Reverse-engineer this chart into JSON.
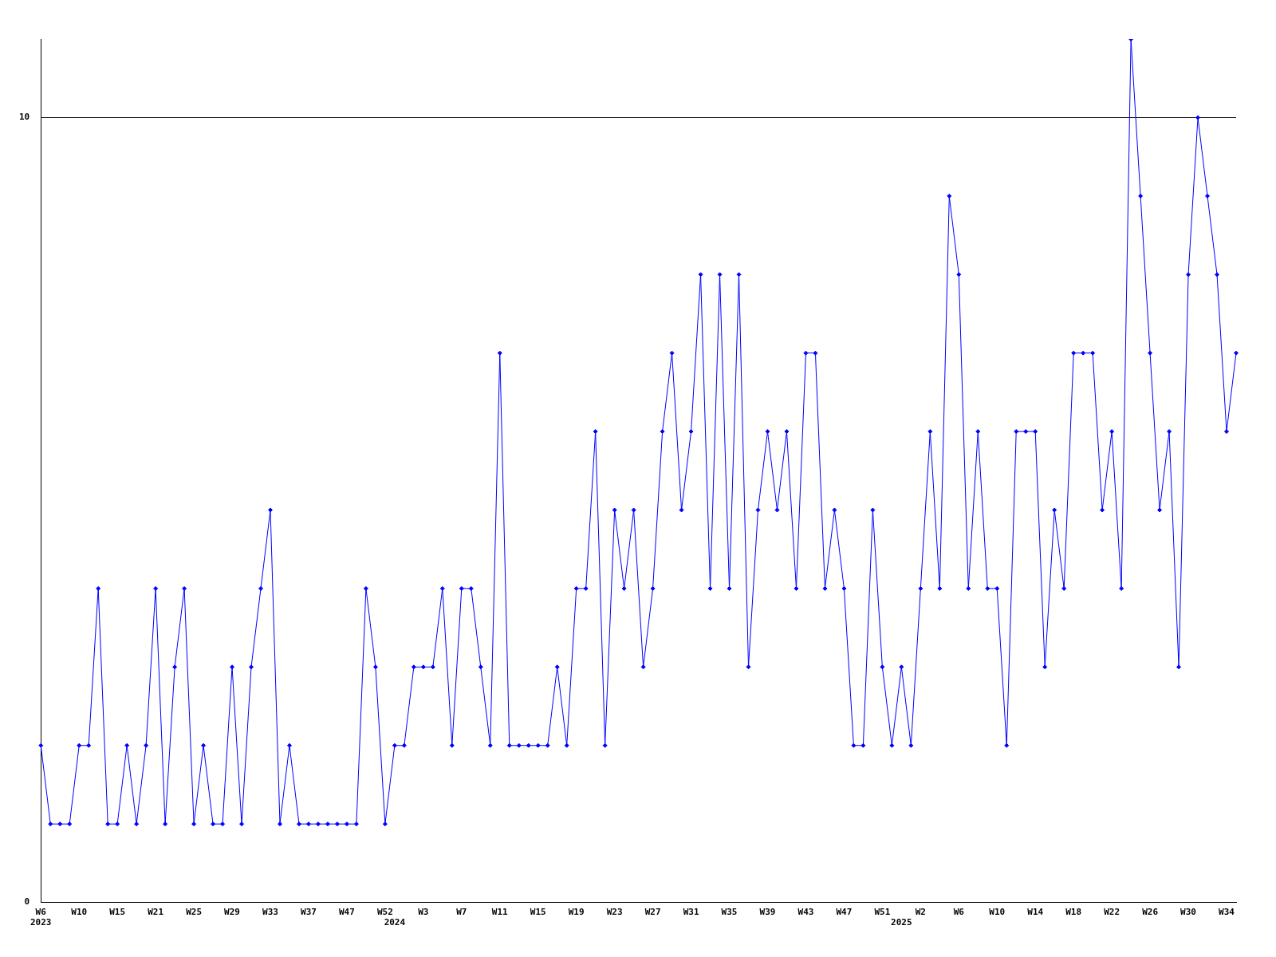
{
  "chart_data": {
    "type": "line",
    "categories": [
      "W6\n2023",
      null,
      null,
      null,
      "W10",
      null,
      null,
      null,
      "W15",
      null,
      null,
      null,
      "W21",
      null,
      null,
      null,
      "W25",
      null,
      null,
      null,
      "W29",
      null,
      null,
      null,
      "W33",
      null,
      null,
      null,
      "W37",
      null,
      null,
      null,
      "W47",
      null,
      null,
      null,
      "W52",
      "\n2024",
      null,
      null,
      "W3",
      null,
      null,
      null,
      "W7",
      null,
      null,
      null,
      "W11",
      null,
      null,
      null,
      "W15",
      null,
      null,
      null,
      "W19",
      null,
      null,
      null,
      "W23",
      null,
      null,
      null,
      "W27",
      null,
      null,
      null,
      "W31",
      null,
      null,
      null,
      "W35",
      null,
      null,
      null,
      "W39",
      null,
      null,
      null,
      "W43",
      null,
      null,
      null,
      "W47",
      null,
      null,
      null,
      "W51",
      null,
      "\n2025",
      null,
      "W2",
      null,
      null,
      null,
      "W6",
      null,
      null,
      null,
      "W10",
      null,
      null,
      null,
      "W14",
      null,
      null,
      null,
      "W18",
      null,
      null,
      null,
      "W22",
      null,
      null,
      null,
      "W26",
      null,
      null,
      null,
      "W30",
      null,
      null,
      null,
      "W34",
      null
    ],
    "series": [
      {
        "color": "#0000ff",
        "values": [
          2,
          1,
          1,
          1,
          2,
          2,
          4,
          1,
          1,
          2,
          1,
          2,
          4,
          1,
          3,
          4,
          1,
          2,
          1,
          1,
          3,
          1,
          3,
          4,
          5,
          1,
          2,
          1,
          1,
          1,
          1,
          1,
          1,
          1,
          4,
          3,
          1,
          2,
          2,
          3,
          3,
          3,
          4,
          2,
          4,
          4,
          3,
          2,
          7,
          2,
          2,
          2,
          2,
          2,
          3,
          2,
          4,
          4,
          6,
          2,
          5,
          4,
          5,
          3,
          4,
          6,
          7,
          5,
          6,
          8,
          4,
          8,
          4,
          8,
          3,
          5,
          6,
          5,
          6,
          4,
          7,
          7,
          4,
          5,
          4,
          2,
          2,
          5,
          3,
          2,
          3,
          2,
          4,
          6,
          4,
          9,
          8,
          4,
          6,
          4,
          4,
          2,
          6,
          6,
          6,
          3,
          5,
          4,
          7,
          7,
          7,
          5,
          6,
          4,
          11,
          9,
          7,
          5,
          6,
          3,
          8,
          10,
          9,
          8,
          6,
          7
        ]
      }
    ],
    "ylim": [
      0,
      11
    ],
    "yticks": [
      0,
      10
    ],
    "grid": "y",
    "legend": false,
    "marker": "diamond",
    "line_style": "solid"
  }
}
